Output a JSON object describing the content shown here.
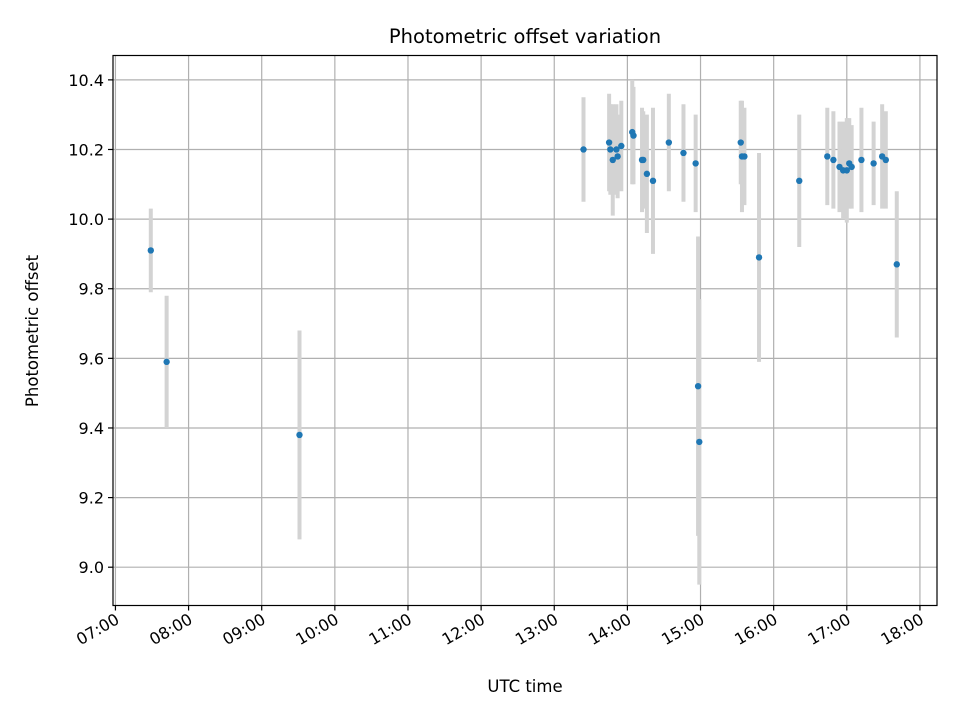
{
  "chart_data": {
    "type": "scatter",
    "title": "Photometric offset variation",
    "xlabel": "UTC time",
    "ylabel": "Photometric offset",
    "x_ticks": [
      "07:00",
      "08:00",
      "09:00",
      "10:00",
      "11:00",
      "12:00",
      "13:00",
      "14:00",
      "15:00",
      "16:00",
      "17:00",
      "18:00"
    ],
    "y_ticks": [
      "9.0",
      "9.2",
      "9.4",
      "9.6",
      "9.8",
      "10.0",
      "10.2",
      "10.4"
    ],
    "xlim": [
      "06:58",
      "18:14"
    ],
    "ylim": [
      8.89,
      10.47
    ],
    "grid": true,
    "colors": {
      "points": "#1f77b4",
      "error_bars": "#d3d3d3",
      "grid": "#b0b0b0"
    },
    "points": [
      {
        "x": "07:29",
        "y": 9.91,
        "err": 0.12
      },
      {
        "x": "07:42",
        "y": 9.59,
        "err": 0.19
      },
      {
        "x": "09:31",
        "y": 9.38,
        "err": 0.3
      },
      {
        "x": "13:24",
        "y": 10.2,
        "err": 0.15
      },
      {
        "x": "13:45",
        "y": 10.22,
        "err": 0.14
      },
      {
        "x": "13:46",
        "y": 10.2,
        "err": 0.13
      },
      {
        "x": "13:48",
        "y": 10.17,
        "err": 0.16
      },
      {
        "x": "13:51",
        "y": 10.2,
        "err": 0.13
      },
      {
        "x": "13:52",
        "y": 10.18,
        "err": 0.12
      },
      {
        "x": "13:55",
        "y": 10.21,
        "err": 0.13
      },
      {
        "x": "14:04",
        "y": 10.25,
        "err": 0.15
      },
      {
        "x": "14:05",
        "y": 10.24,
        "err": 0.14
      },
      {
        "x": "14:12",
        "y": 10.17,
        "err": 0.15
      },
      {
        "x": "14:13",
        "y": 10.17,
        "err": 0.14
      },
      {
        "x": "14:16",
        "y": 10.13,
        "err": 0.17
      },
      {
        "x": "14:21",
        "y": 10.11,
        "err": 0.21
      },
      {
        "x": "14:34",
        "y": 10.22,
        "err": 0.14
      },
      {
        "x": "14:46",
        "y": 10.19,
        "err": 0.14
      },
      {
        "x": "14:56",
        "y": 10.16,
        "err": 0.14
      },
      {
        "x": "14:58",
        "y": 9.52,
        "err": 0.43
      },
      {
        "x": "14:59",
        "y": 9.36,
        "err": 0.41
      },
      {
        "x": "15:33",
        "y": 10.22,
        "err": 0.12
      },
      {
        "x": "15:34",
        "y": 10.18,
        "err": 0.16
      },
      {
        "x": "15:36",
        "y": 10.18,
        "err": 0.14
      },
      {
        "x": "15:48",
        "y": 9.89,
        "err": 0.3
      },
      {
        "x": "16:21",
        "y": 10.11,
        "err": 0.19
      },
      {
        "x": "16:44",
        "y": 10.18,
        "err": 0.14
      },
      {
        "x": "16:49",
        "y": 10.17,
        "err": 0.14
      },
      {
        "x": "16:54",
        "y": 10.15,
        "err": 0.13
      },
      {
        "x": "16:57",
        "y": 10.14,
        "err": 0.14
      },
      {
        "x": "17:00",
        "y": 10.14,
        "err": 0.15
      },
      {
        "x": "17:02",
        "y": 10.16,
        "err": 0.13
      },
      {
        "x": "17:04",
        "y": 10.15,
        "err": 0.12
      },
      {
        "x": "17:12",
        "y": 10.17,
        "err": 0.15
      },
      {
        "x": "17:22",
        "y": 10.16,
        "err": 0.12
      },
      {
        "x": "17:29",
        "y": 10.18,
        "err": 0.15
      },
      {
        "x": "17:32",
        "y": 10.17,
        "err": 0.14
      },
      {
        "x": "17:41",
        "y": 9.87,
        "err": 0.21
      }
    ]
  }
}
